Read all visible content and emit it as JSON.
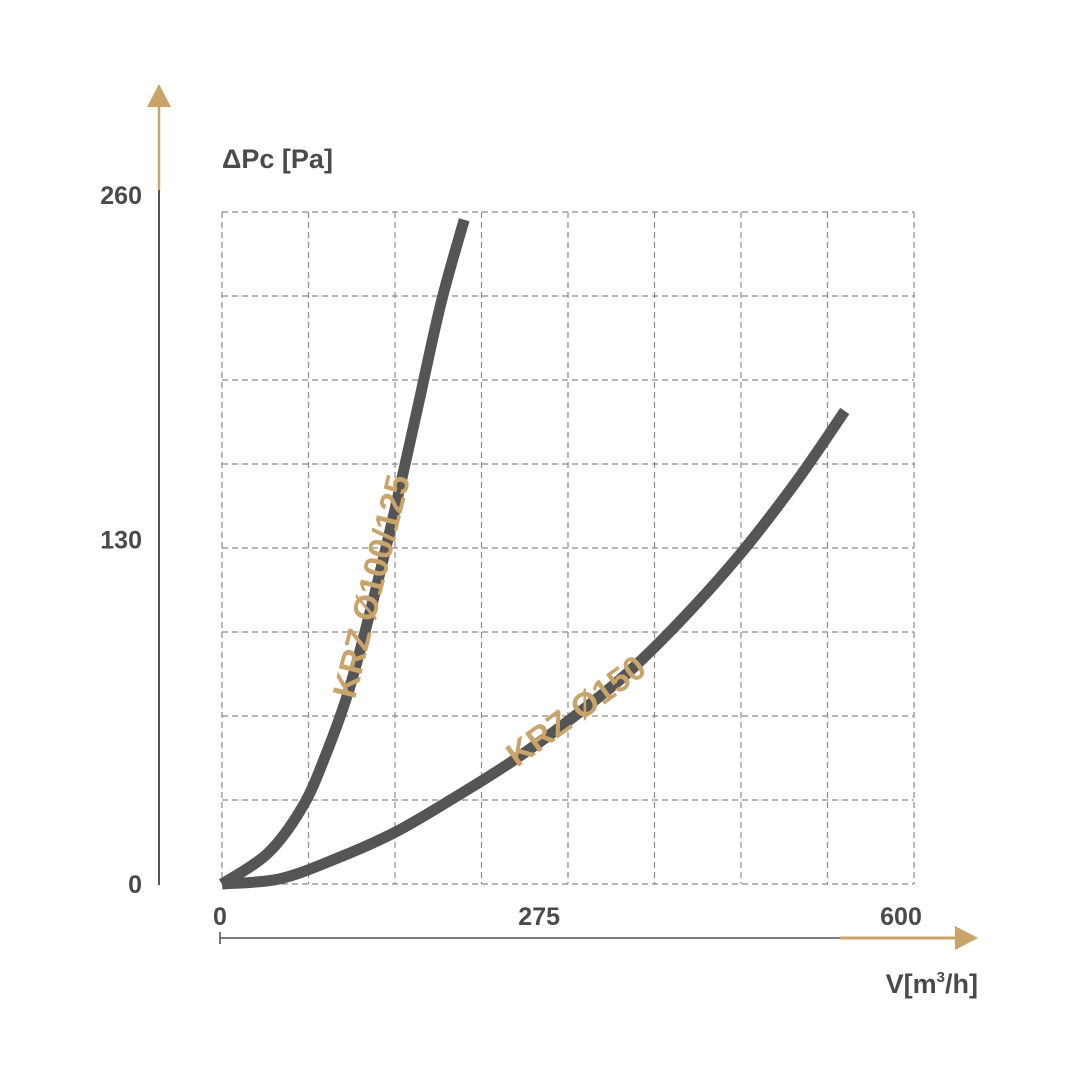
{
  "chart_data": {
    "type": "line",
    "ylabel": "ΔPc [Pa]",
    "xlabel_main": "V[m",
    "xlabel_sup": "3",
    "xlabel_end": "/h]",
    "xlim": [
      0,
      600
    ],
    "ylim": [
      0,
      260
    ],
    "x_ticks": [
      {
        "value": 0,
        "label": "0"
      },
      {
        "value": 275,
        "label": "275"
      },
      {
        "value": 600,
        "label": "600"
      }
    ],
    "y_ticks": [
      {
        "value": 0,
        "label": "0"
      },
      {
        "value": 130,
        "label": "130"
      },
      {
        "value": 260,
        "label": "260"
      }
    ],
    "grid": true,
    "colors": {
      "curve": "#555555",
      "accent": "#c9a46a",
      "grid": "#8a8a8a",
      "text": "#4a4a4a"
    },
    "series": [
      {
        "name": "KRZ Ø100/125",
        "points": [
          [
            0,
            0
          ],
          [
            40,
            12
          ],
          [
            70,
            30
          ],
          [
            90,
            50
          ],
          [
            110,
            75
          ],
          [
            130,
            108
          ],
          [
            150,
            145
          ],
          [
            170,
            185
          ],
          [
            190,
            225
          ],
          [
            210,
            257
          ]
        ]
      },
      {
        "name": "KRZ Ø150",
        "points": [
          [
            0,
            0
          ],
          [
            50,
            2
          ],
          [
            100,
            10
          ],
          [
            150,
            20
          ],
          [
            200,
            33
          ],
          [
            250,
            47
          ],
          [
            300,
            63
          ],
          [
            350,
            81
          ],
          [
            400,
            103
          ],
          [
            450,
            128
          ],
          [
            500,
            157
          ],
          [
            540,
            183
          ]
        ]
      }
    ]
  }
}
